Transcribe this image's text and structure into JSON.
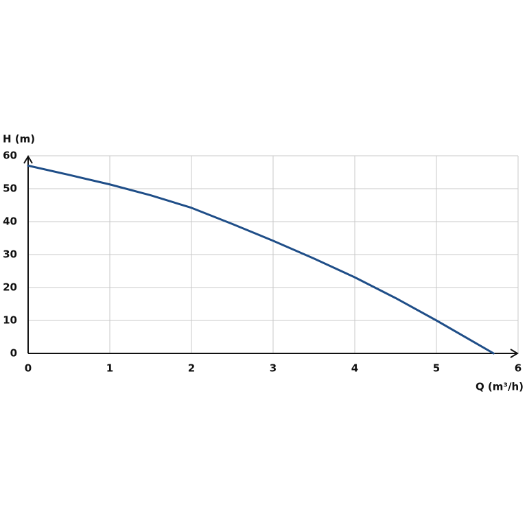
{
  "chart_data": {
    "type": "line",
    "ylabel": "H (m)",
    "xlabel": "Q (m³/h)",
    "x": [
      0,
      0.5,
      1,
      1.5,
      2,
      2.5,
      3,
      3.5,
      4,
      4.5,
      5,
      5.7
    ],
    "values": [
      57,
      54.2,
      51.3,
      48,
      44.2,
      39.3,
      34.2,
      28.8,
      23.1,
      16.8,
      10,
      0
    ],
    "color": "#1f4e88",
    "xlim": [
      0,
      6
    ],
    "ylim": [
      0,
      60
    ],
    "xticks": [
      0,
      1,
      2,
      3,
      4,
      5,
      6
    ],
    "yticks": [
      0,
      10,
      20,
      30,
      40,
      50,
      60
    ],
    "grid": true
  }
}
